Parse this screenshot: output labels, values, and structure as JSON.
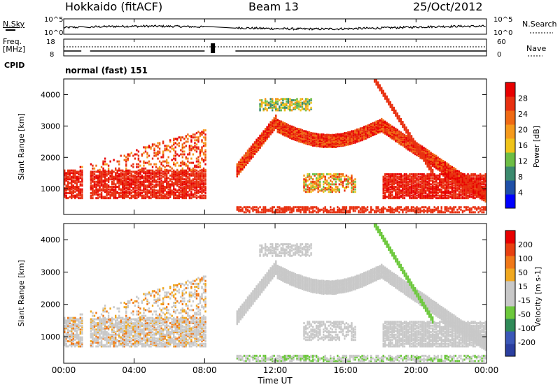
{
  "header": {
    "radar": "Hokkaido (fitACF)",
    "beam": "Beam 13",
    "date": "25/Oct/2012"
  },
  "left_labels": {
    "nsky": "N.Sky",
    "freq_line1": "Freq.",
    "freq_line2": "[MHz]",
    "cpid": "CPID"
  },
  "right_labels": {
    "nsearch": "N.Search",
    "nave": "Nave"
  },
  "cpid_text": "normal (fast) 151",
  "xaxis": {
    "ticks": [
      "00:00",
      "04:00",
      "08:00",
      "12:00",
      "16:00",
      "20:00",
      "00:00"
    ],
    "label": "Time UT"
  },
  "colors": {
    "power": [
      "#0000ff",
      "#1f50a8",
      "#3b8a6e",
      "#6dbe45",
      "#f0c41a",
      "#f59a1c",
      "#f06a14",
      "#e83010",
      "#e80000"
    ],
    "velocity": [
      "#2b3fa0",
      "#3b58b8",
      "#2f8a58",
      "#6cc83c",
      "#c8c8c8",
      "#c8c8c8",
      "#f0a820",
      "#f07818",
      "#e84010",
      "#e80000"
    ]
  },
  "chart_data": [
    {
      "type": "line",
      "title": "N.Sky / N.Search",
      "yticks": [
        "10^5",
        "10^0"
      ],
      "x_range": [
        0,
        24
      ],
      "note": "noise timeseries, gaps at about 01:00-01:30 and 08:00-09:45"
    },
    {
      "type": "line",
      "title": "Freq. / Nave",
      "ylabel": "Freq. [MHz]",
      "left_ticks": [
        "18",
        "8"
      ],
      "right_ticks": [
        "60",
        "0"
      ],
      "x_range": [
        0,
        24
      ]
    },
    {
      "type": "heatmap",
      "ylabel": "Slant Range [km]",
      "colorbar_label": "Power [dB]",
      "colorbar_ticks": [
        "28",
        "24",
        "20",
        "16",
        "12",
        "8",
        "4"
      ],
      "yticks": [
        "4000",
        "3000",
        "2000",
        "1000"
      ],
      "y_range": [
        180,
        4500
      ],
      "x_range": [
        0,
        24
      ]
    },
    {
      "type": "heatmap",
      "ylabel": "Slant Range [km]",
      "colorbar_label": "Velocity [m s-1]",
      "colorbar_ticks": [
        "200",
        "100",
        "50",
        "15",
        "-15",
        "-50",
        "-100",
        "-200"
      ],
      "yticks": [
        "4000",
        "3000",
        "2000",
        "1000"
      ],
      "y_range": [
        180,
        4500
      ],
      "x_range": [
        0,
        24
      ]
    }
  ]
}
